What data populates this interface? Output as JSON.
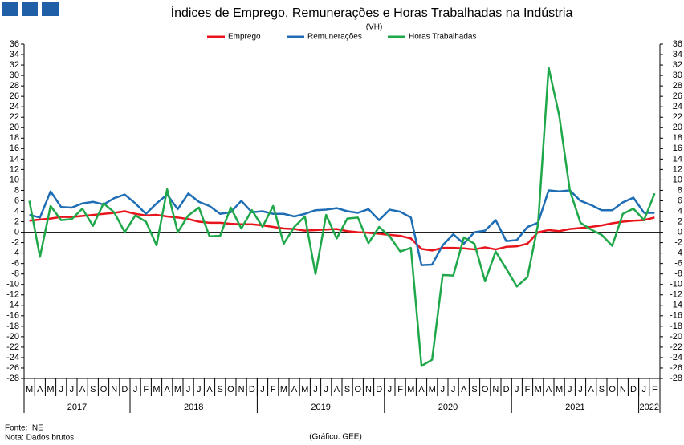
{
  "chart_data": {
    "type": "line",
    "title": "Índices de Emprego, Remunerações e Horas Trabalhadas na Indústria",
    "subtitle": "(VH)",
    "source": "Fonte: INE",
    "note": "Nota: Dados brutos",
    "credit": "(Gráfico: GEE)",
    "categories": [
      "M",
      "A",
      "M",
      "J",
      "J",
      "A",
      "S",
      "O",
      "N",
      "D",
      "J",
      "F",
      "M",
      "A",
      "M",
      "J",
      "J",
      "A",
      "S",
      "O",
      "N",
      "D",
      "J",
      "F",
      "M",
      "A",
      "M",
      "J",
      "J",
      "A",
      "S",
      "O",
      "N",
      "D",
      "J",
      "F",
      "M",
      "A",
      "M",
      "J",
      "J",
      "A",
      "S",
      "O",
      "N",
      "D",
      "J",
      "F",
      "M",
      "A",
      "M",
      "J",
      "J",
      "A",
      "S",
      "O",
      "N",
      "D",
      "J",
      "F"
    ],
    "year_labels": [
      "2017",
      "2018",
      "2019",
      "2020",
      "2021",
      "2022"
    ],
    "series": [
      {
        "name": "Emprego",
        "color": "#e8141c",
        "values": [
          2.2,
          2.4,
          2.6,
          2.9,
          2.9,
          3.1,
          3.3,
          3.5,
          3.7,
          4.0,
          3.5,
          3.2,
          3.3,
          3.0,
          2.8,
          2.5,
          2.0,
          1.8,
          1.8,
          1.6,
          1.5,
          1.5,
          1.3,
          1.0,
          0.7,
          0.6,
          0.3,
          0.4,
          0.5,
          0.6,
          0.2,
          0.0,
          -0.1,
          -0.3,
          -0.5,
          -0.7,
          -1.2,
          -3.2,
          -3.5,
          -3.0,
          -3.0,
          -3.1,
          -3.3,
          -2.9,
          -3.3,
          -2.8,
          -2.7,
          -2.2,
          0.0,
          0.4,
          0.2,
          0.6,
          0.8,
          1.0,
          1.3,
          1.7,
          2.0,
          2.2,
          2.3,
          2.8
        ]
      },
      {
        "name": "Remunerações",
        "color": "#1f6eb5",
        "values": [
          3.3,
          2.8,
          7.8,
          4.8,
          4.7,
          5.5,
          5.8,
          5.3,
          6.5,
          7.2,
          5.5,
          3.5,
          5.5,
          7.2,
          4.4,
          7.4,
          5.8,
          5.0,
          3.5,
          3.8,
          6.0,
          3.8,
          4.0,
          3.5,
          3.5,
          3.0,
          3.5,
          4.2,
          4.3,
          4.6,
          4.0,
          3.7,
          4.4,
          2.3,
          4.3,
          3.9,
          2.8,
          -6.3,
          -6.2,
          -2.5,
          -0.4,
          -2.2,
          0.0,
          0.3,
          2.3,
          -1.7,
          -1.5,
          1.0,
          1.8,
          8.0,
          7.8,
          8.0,
          6.0,
          5.2,
          4.2,
          4.2,
          5.7,
          6.6,
          3.7,
          3.7
        ]
      },
      {
        "name": "Horas Trabalhadas",
        "color": "#1fa84a",
        "values": [
          6.0,
          -4.7,
          5.0,
          2.3,
          2.5,
          4.5,
          1.2,
          5.5,
          3.8,
          0.0,
          3.2,
          2.0,
          -2.5,
          8.2,
          0.0,
          3.2,
          4.7,
          -0.8,
          -0.7,
          4.7,
          0.7,
          4.2,
          1.0,
          5.0,
          -2.2,
          1.0,
          3.0,
          -8.0,
          3.3,
          -1.2,
          2.6,
          2.8,
          -2.1,
          1.0,
          -0.8,
          -3.7,
          -3.0,
          -25.6,
          -24.4,
          -8.2,
          -8.3,
          -1.0,
          -2.2,
          -9.4,
          -3.7,
          -7.0,
          -10.4,
          -8.6,
          1.5,
          31.5,
          22.3,
          8.0,
          1.8,
          0.5,
          -0.5,
          -2.6,
          3.5,
          4.5,
          2.3,
          7.4
        ]
      }
    ],
    "ylim": [
      -28,
      36
    ],
    "yticks": [
      -28,
      -26,
      -24,
      -22,
      -20,
      -18,
      -16,
      -14,
      -12,
      -10,
      -8,
      -6,
      -4,
      -2,
      0,
      2,
      4,
      6,
      8,
      10,
      12,
      14,
      16,
      18,
      20,
      22,
      24,
      26,
      28,
      30,
      32,
      34,
      36
    ],
    "y2lim": [
      -28,
      36
    ],
    "y2ticks": [
      -28,
      -26,
      -24,
      -22,
      -20,
      -18,
      -16,
      -14,
      -12,
      -10,
      -8,
      -6,
      -4,
      -2,
      0,
      2,
      4,
      6,
      8,
      10,
      12,
      14,
      16,
      18,
      20,
      22,
      24,
      26,
      28,
      30,
      32,
      34,
      36
    ],
    "legend": "top"
  }
}
